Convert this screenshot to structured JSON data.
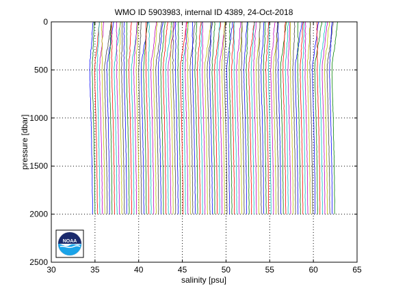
{
  "chart_data": {
    "type": "line",
    "title": "WMO ID 5903983, internal ID 4389, 24-Oct-2018",
    "xlabel": "salinity [psu]",
    "ylabel": "pressure [dbar]",
    "xlim": [
      30,
      65
    ],
    "ylim": [
      0,
      2500
    ],
    "y_reversed": true,
    "grid": "dotted",
    "xticks": [
      "30",
      "35",
      "40",
      "45",
      "50",
      "55",
      "60",
      "65"
    ],
    "yticks": [
      "0",
      "500",
      "1000",
      "1500",
      "2000",
      "2500"
    ],
    "profile_count": 100,
    "profile_offset_start": 0,
    "profile_offset_step": 0.28,
    "profile_shape": {
      "pressure": [
        0,
        50,
        100,
        200,
        300,
        400,
        500,
        700,
        1000,
        1300,
        1600,
        2000
      ],
      "salinity": [
        34.8,
        34.75,
        34.7,
        34.65,
        34.55,
        34.45,
        34.4,
        34.45,
        34.55,
        34.62,
        34.68,
        34.72
      ]
    },
    "colors": [
      "#0000ff",
      "#008000",
      "#ff0000",
      "#00bfbf",
      "#bf00bf",
      "#bfbf00",
      "#404040"
    ]
  },
  "logo": {
    "text": "NOAA"
  }
}
